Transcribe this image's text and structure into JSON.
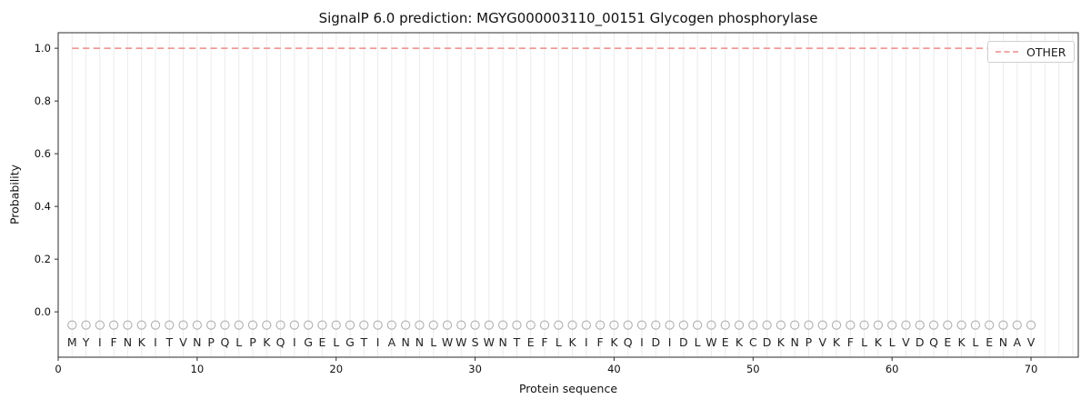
{
  "title": "SignalP 6.0 prediction: MGYG000003110_00151 Glycogen phosphorylase",
  "axes": {
    "xlabel": "Protein sequence",
    "ylabel": "Probability",
    "xtick_labels": [
      "0",
      "10",
      "20",
      "30",
      "40",
      "50",
      "60",
      "70"
    ],
    "ytick_labels": [
      "0.0",
      "0.2",
      "0.4",
      "0.6",
      "0.8",
      "1.0"
    ]
  },
  "legend": {
    "position": "upper right",
    "items": [
      {
        "label": "OTHER",
        "line_style": "dashed",
        "color": "#ee8a8a"
      }
    ]
  },
  "chart_data": {
    "type": "line",
    "title": "SignalP 6.0 prediction: MGYG000003110_00151 Glycogen phosphorylase",
    "xlabel": "Protein sequence",
    "ylabel": "Probability",
    "xlim": [
      0,
      73.4
    ],
    "ylim": [
      -0.172,
      1.059
    ],
    "xticks": [
      0,
      10,
      20,
      30,
      40,
      50,
      60,
      70
    ],
    "yticks": [
      0.0,
      0.2,
      0.4,
      0.6,
      0.8,
      1.0
    ],
    "grid": "light vertical gridline at every sequence position, no horizontal grid",
    "legend_position": "upper right",
    "series": [
      {
        "name": "OTHER",
        "style": "dashed",
        "color": "#ee8a8a",
        "x_start": 1,
        "x_step": 1,
        "values": [
          1.0,
          1.0,
          1.0,
          1.0,
          1.0,
          1.0,
          1.0,
          1.0,
          1.0,
          1.0,
          1.0,
          1.0,
          1.0,
          1.0,
          1.0,
          1.0,
          1.0,
          1.0,
          1.0,
          1.0,
          1.0,
          1.0,
          1.0,
          1.0,
          1.0,
          1.0,
          1.0,
          1.0,
          1.0,
          1.0,
          1.0,
          1.0,
          1.0,
          1.0,
          1.0,
          1.0,
          1.0,
          1.0,
          1.0,
          1.0,
          1.0,
          1.0,
          1.0,
          1.0,
          1.0,
          1.0,
          1.0,
          1.0,
          1.0,
          1.0,
          1.0,
          1.0,
          1.0,
          1.0,
          1.0,
          1.0,
          1.0,
          1.0,
          1.0,
          1.0,
          1.0,
          1.0,
          1.0,
          1.0,
          1.0,
          1.0,
          1.0,
          1.0,
          1.0,
          1.0
        ]
      }
    ],
    "sequence": "MYIFNKITVNPQLPKQIGELGTIANNLWWSWNTEFLKIFKQIDIDLWEKCDKNPVKFLKLVDQEKLENAV",
    "sequence_markers": {
      "shape": "open-circle",
      "y": -0.05,
      "color": "#b0b0b0"
    },
    "sequence_letters_y": -0.1,
    "gridline_positions_end": 73
  },
  "colors": {
    "background": "#ffffff",
    "other_line": "#ee8a8a",
    "gridline": "#ebebeb",
    "marker_stroke": "#b0b0b0",
    "text": "#111111",
    "spine": "#2b2b2b",
    "legend_border": "#cfcfcf"
  }
}
